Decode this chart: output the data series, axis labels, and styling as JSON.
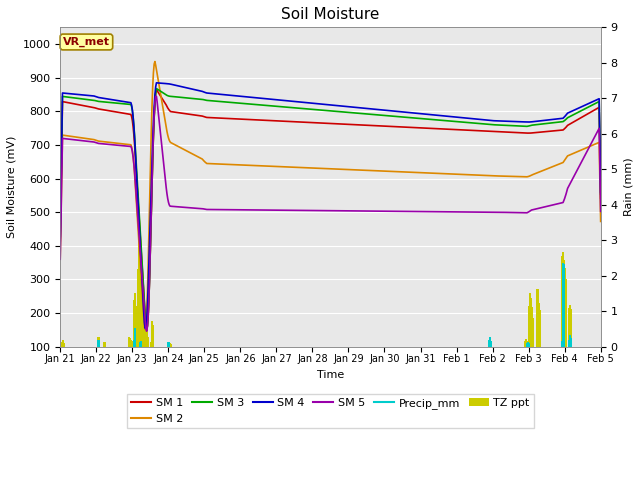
{
  "title": "Soil Moisture",
  "xlabel": "Time",
  "ylabel_left": "Soil Moisture (mV)",
  "ylabel_right": "Rain (mm)",
  "ylim_left": [
    100,
    1050
  ],
  "ylim_right": [
    0.0,
    9.0
  ],
  "bg_color": "#e8e8e8",
  "fig_color": "#ffffff",
  "xtick_labels": [
    "Jan 21",
    "Jan 22",
    "Jan 23",
    "Jan 24",
    "Jan 25",
    "Jan 26",
    "Jan 27",
    "Jan 28",
    "Jan 29",
    "Jan 30",
    "Jan 31",
    "Feb 1",
    "Feb 2",
    "Feb 3",
    "Feb 4",
    "Feb 5"
  ],
  "ytick_left": [
    100,
    200,
    300,
    400,
    500,
    600,
    700,
    800,
    900,
    1000
  ],
  "ytick_right": [
    0.0,
    1.0,
    2.0,
    3.0,
    4.0,
    5.0,
    6.0,
    7.0,
    8.0,
    9.0
  ],
  "vr_met_label": "VR_met",
  "line_colors": {
    "SM 1": "#cc0000",
    "SM 2": "#dd8800",
    "SM 3": "#00aa00",
    "SM 4": "#0000cc",
    "SM 5": "#9900aa",
    "Precip_mm": "#00cccc",
    "TZ ppt": "#cccc00"
  },
  "n_days": 15,
  "n_pts_per_day": 48
}
